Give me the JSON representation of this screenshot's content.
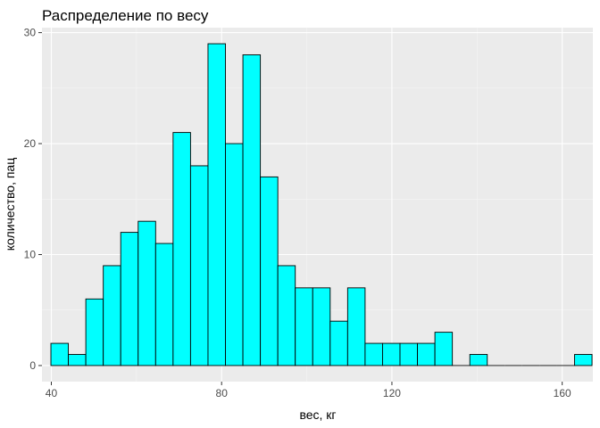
{
  "chart_data": {
    "type": "bar",
    "title": "Распределение по весу",
    "xlabel": "вес, кг",
    "ylabel": "количество, пац",
    "xlim": [
      37.8,
      167.2
    ],
    "ylim": [
      -1.45,
      30.45
    ],
    "x_ticks": [
      40,
      80,
      120,
      160
    ],
    "y_ticks": [
      0,
      10,
      20,
      30
    ],
    "bin_width": 4.1,
    "bins": [
      {
        "x0": 39.9,
        "count": 2
      },
      {
        "x0": 44.0,
        "count": 1
      },
      {
        "x0": 48.1,
        "count": 6
      },
      {
        "x0": 52.2,
        "count": 9
      },
      {
        "x0": 56.3,
        "count": 12
      },
      {
        "x0": 60.4,
        "count": 13
      },
      {
        "x0": 64.5,
        "count": 11
      },
      {
        "x0": 68.6,
        "count": 21
      },
      {
        "x0": 72.7,
        "count": 18
      },
      {
        "x0": 76.8,
        "count": 29
      },
      {
        "x0": 80.9,
        "count": 20
      },
      {
        "x0": 85.0,
        "count": 28
      },
      {
        "x0": 89.1,
        "count": 17
      },
      {
        "x0": 93.2,
        "count": 9
      },
      {
        "x0": 97.3,
        "count": 7
      },
      {
        "x0": 101.4,
        "count": 7
      },
      {
        "x0": 105.5,
        "count": 4
      },
      {
        "x0": 109.6,
        "count": 7
      },
      {
        "x0": 113.7,
        "count": 2
      },
      {
        "x0": 117.8,
        "count": 2
      },
      {
        "x0": 121.9,
        "count": 2
      },
      {
        "x0": 126.0,
        "count": 2
      },
      {
        "x0": 130.1,
        "count": 3
      },
      {
        "x0": 134.2,
        "count": 0
      },
      {
        "x0": 138.3,
        "count": 1
      },
      {
        "x0": 142.4,
        "count": 0
      },
      {
        "x0": 146.5,
        "count": 0
      },
      {
        "x0": 150.6,
        "count": 0
      },
      {
        "x0": 154.7,
        "count": 0
      },
      {
        "x0": 158.8,
        "count": 0
      },
      {
        "x0": 162.9,
        "count": 1
      }
    ],
    "grid": true,
    "colors": {
      "bar_fill": "#00ffff",
      "bar_stroke": "#000000",
      "panel_bg": "#ebebeb",
      "grid_major": "#ffffff",
      "grid_minor": "#f5f5f5",
      "tick_text": "#4d4d4d",
      "tick_mark": "#333333"
    }
  }
}
